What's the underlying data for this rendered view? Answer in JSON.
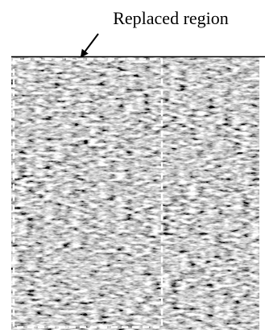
{
  "annotation": {
    "label": "Replaced region"
  }
}
